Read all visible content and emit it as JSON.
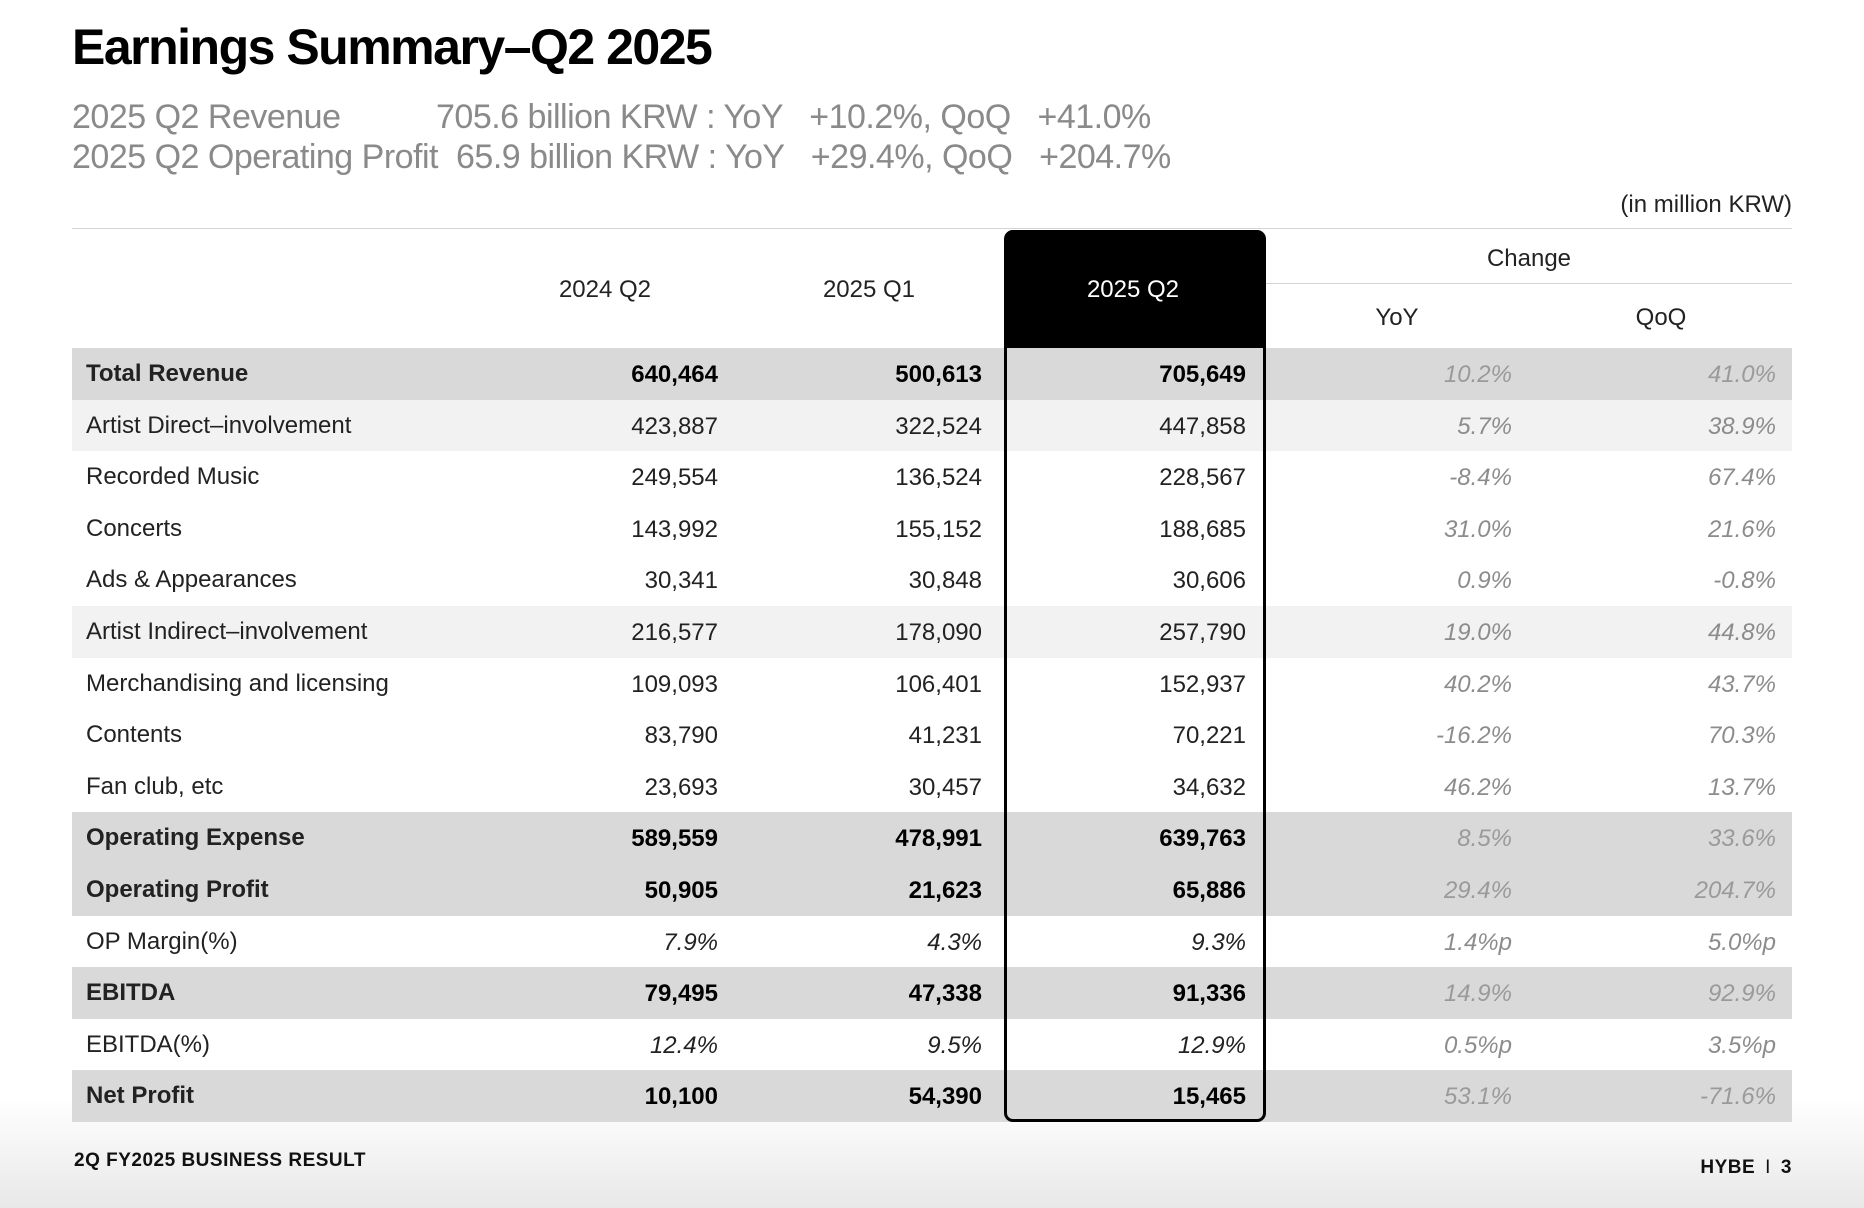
{
  "title": "Earnings Summary–Q2 2025",
  "summary": [
    {
      "label": "2025 Q2 Revenue",
      "value": "705.6 billion KRW : YoY   +10.2%, QoQ   +41.0%"
    },
    {
      "label": "2025 Q2 Operating Profit",
      "value": "65.9 billion KRW : YoY   +29.4%, QoQ   +204.7%"
    }
  ],
  "unit_note": "(in million KRW)",
  "headers": {
    "col1": "2024 Q2",
    "col2": "2025 Q1",
    "col3": "2025 Q2",
    "change": "Change",
    "yoy": "YoY",
    "qoq": "QoQ"
  },
  "rows": [
    {
      "name": "Total Revenue",
      "v1": "640,464",
      "v2": "500,613",
      "v3": "705,649",
      "yoy": "10.2%",
      "qoq": "41.0%",
      "style": "bold"
    },
    {
      "name": "Artist Direct–involvement",
      "v1": "423,887",
      "v2": "322,524",
      "v3": "447,858",
      "yoy": "5.7%",
      "qoq": "38.9%",
      "style": "light"
    },
    {
      "name": "Recorded Music",
      "v1": "249,554",
      "v2": "136,524",
      "v3": "228,567",
      "yoy": "-8.4%",
      "qoq": "67.4%",
      "style": "plain"
    },
    {
      "name": "Concerts",
      "v1": "143,992",
      "v2": "155,152",
      "v3": "188,685",
      "yoy": "31.0%",
      "qoq": "21.6%",
      "style": "plain"
    },
    {
      "name": "Ads & Appearances",
      "v1": "30,341",
      "v2": "30,848",
      "v3": "30,606",
      "yoy": "0.9%",
      "qoq": "-0.8%",
      "style": "plain"
    },
    {
      "name": "Artist Indirect–involvement",
      "v1": "216,577",
      "v2": "178,090",
      "v3": "257,790",
      "yoy": "19.0%",
      "qoq": "44.8%",
      "style": "light"
    },
    {
      "name": "Merchandising and licensing",
      "v1": "109,093",
      "v2": "106,401",
      "v3": "152,937",
      "yoy": "40.2%",
      "qoq": "43.7%",
      "style": "plain"
    },
    {
      "name": "Contents",
      "v1": "83,790",
      "v2": "41,231",
      "v3": "70,221",
      "yoy": "-16.2%",
      "qoq": "70.3%",
      "style": "plain"
    },
    {
      "name": "Fan club, etc",
      "v1": "23,693",
      "v2": "30,457",
      "v3": "34,632",
      "yoy": "46.2%",
      "qoq": "13.7%",
      "style": "plain"
    },
    {
      "name": "Operating Expense",
      "v1": "589,559",
      "v2": "478,991",
      "v3": "639,763",
      "yoy": "8.5%",
      "qoq": "33.6%",
      "style": "bold"
    },
    {
      "name": "Operating Profit",
      "v1": "50,905",
      "v2": "21,623",
      "v3": "65,886",
      "yoy": "29.4%",
      "qoq": "204.7%",
      "style": "bold"
    },
    {
      "name": "OP Margin(%)",
      "v1": "7.9%",
      "v2": "4.3%",
      "v3": "9.3%",
      "yoy": "1.4%p",
      "qoq": "5.0%p",
      "style": "plain pct"
    },
    {
      "name": "EBITDA",
      "v1": "79,495",
      "v2": "47,338",
      "v3": "91,336",
      "yoy": "14.9%",
      "qoq": "92.9%",
      "style": "bold"
    },
    {
      "name": "EBITDA(%)",
      "v1": "12.4%",
      "v2": "9.5%",
      "v3": "12.9%",
      "yoy": "0.5%p",
      "qoq": "3.5%p",
      "style": "plain pct"
    },
    {
      "name": "Net Profit",
      "v1": "10,100",
      "v2": "54,390",
      "v3": "15,465",
      "yoy": "53.1%",
      "qoq": "-71.6%",
      "style": "bold"
    }
  ],
  "footer": {
    "left": "2Q FY2025 BUSINESS RESULT",
    "brand": "HYBE",
    "separator": "I",
    "page": "3"
  }
}
